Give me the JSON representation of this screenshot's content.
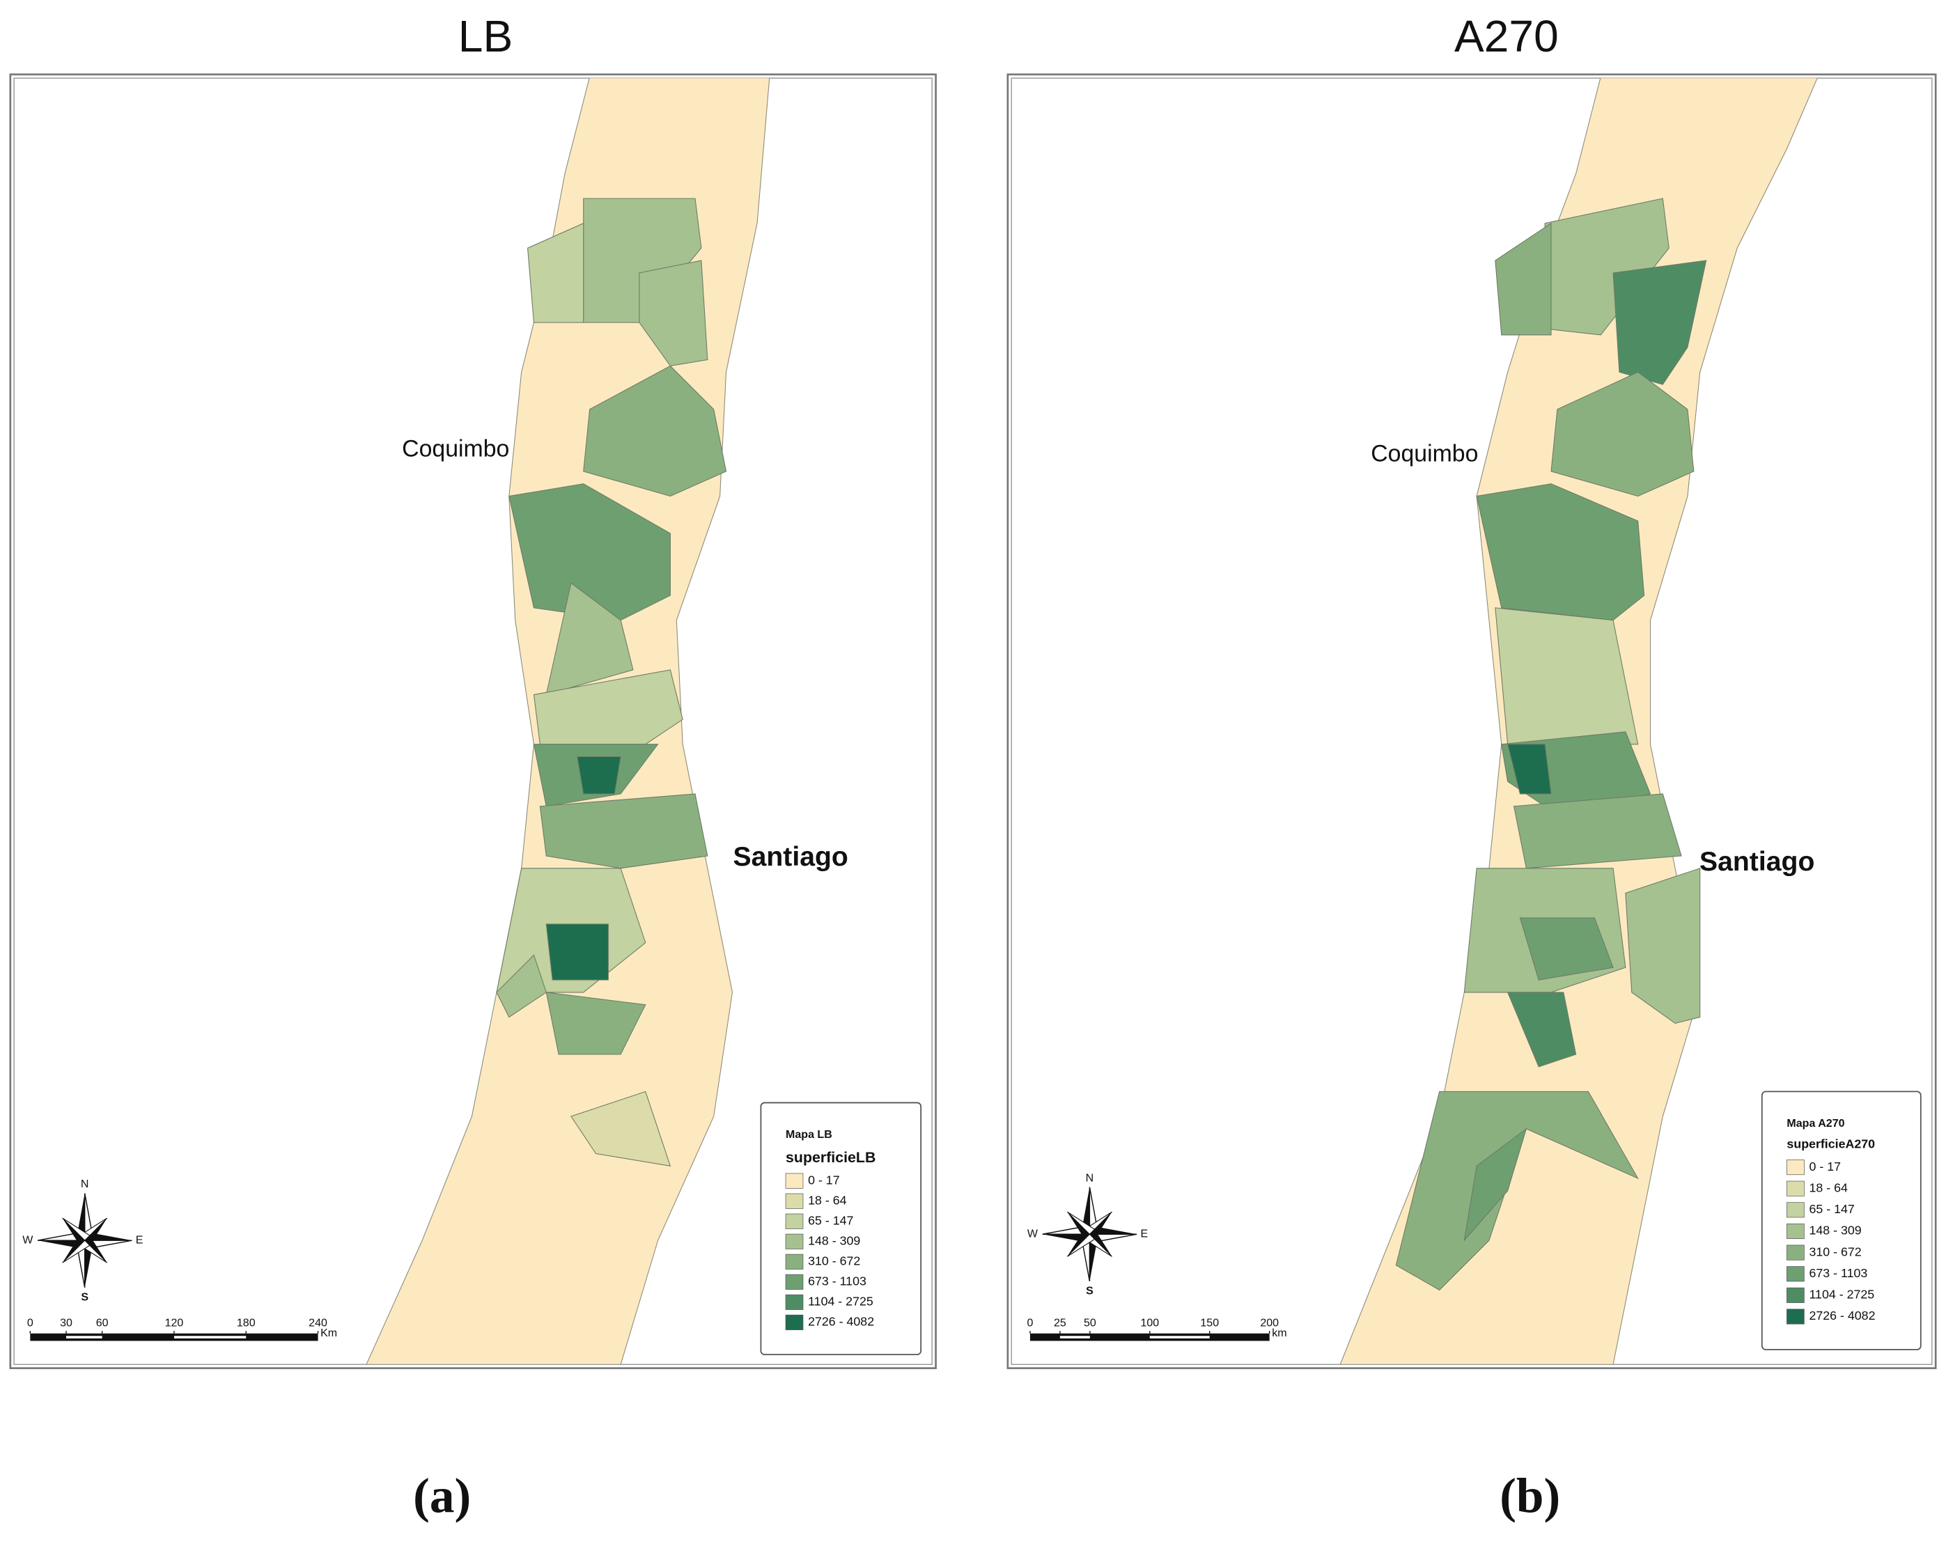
{
  "panels": [
    {
      "title": "LB",
      "caption": "(a)",
      "labels": [
        "Coquimbo",
        "Santiago"
      ],
      "legend": {
        "title": "Mapa LB",
        "field": "superficieLB",
        "classes": [
          {
            "label": "0 - 17",
            "color": "#fde9c0"
          },
          {
            "label": "18 - 64",
            "color": "#dcdcaa"
          },
          {
            "label": "65 - 147",
            "color": "#c2d2a0"
          },
          {
            "label": "148 - 309",
            "color": "#a6c190"
          },
          {
            "label": "310 - 672",
            "color": "#8ab07f"
          },
          {
            "label": "673 - 1103",
            "color": "#6e9f71"
          },
          {
            "label": "1104 - 2725",
            "color": "#4e8d64"
          },
          {
            "label": "2726 - 4082",
            "color": "#1d6e4e"
          }
        ]
      },
      "scale_bar": {
        "ticks": [
          0,
          30,
          60,
          120,
          180,
          240
        ],
        "unit": "Km"
      },
      "compass": [
        "N",
        "S",
        "W",
        "E"
      ]
    },
    {
      "title": "A270",
      "caption": "(b)",
      "labels": [
        "Coquimbo",
        "Santiago"
      ],
      "legend": {
        "title": "Mapa A270",
        "field": "superficieA270",
        "classes": [
          {
            "label": "0 - 17",
            "color": "#fde9c0"
          },
          {
            "label": "18 - 64",
            "color": "#dcdcaa"
          },
          {
            "label": "65 - 147",
            "color": "#c2d2a0"
          },
          {
            "label": "148 - 309",
            "color": "#a6c190"
          },
          {
            "label": "310 - 672",
            "color": "#8ab07f"
          },
          {
            "label": "673 - 1103",
            "color": "#6e9f71"
          },
          {
            "label": "1104 - 2725",
            "color": "#4e8d64"
          },
          {
            "label": "2726 - 4082",
            "color": "#1d6e4e"
          }
        ]
      },
      "scale_bar": {
        "ticks": [
          0,
          25,
          50,
          100,
          150,
          200
        ],
        "unit": "km"
      },
      "compass": [
        "N",
        "S",
        "W",
        "E"
      ]
    }
  ]
}
